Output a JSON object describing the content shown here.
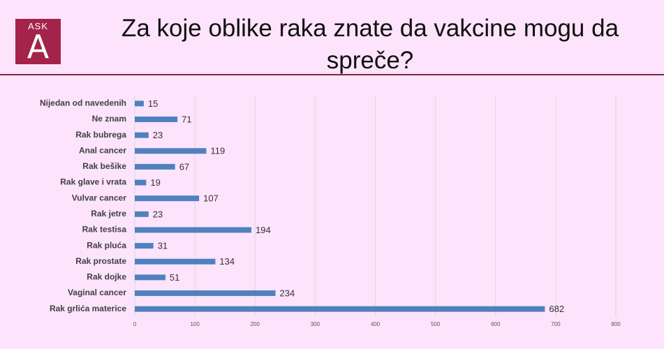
{
  "logo": {
    "top": "ASK",
    "letter": "A"
  },
  "chart_data": {
    "type": "bar",
    "orientation": "horizontal",
    "title": "Za koje oblike raka znate da vakcine mogu da spreče?",
    "categories": [
      "Nijedan od navedenih",
      "Ne znam",
      "Rak bubrega",
      "Anal cancer",
      "Rak bešike",
      "Rak glave i vrata",
      "Vulvar cancer",
      "Rak jetre",
      "Rak testisa",
      "Rak pluća",
      "Rak prostate",
      "Rak dojke",
      "Vaginal cancer",
      "Rak grlića materice"
    ],
    "values": [
      15,
      71,
      23,
      119,
      67,
      19,
      107,
      23,
      194,
      31,
      134,
      51,
      234,
      682
    ],
    "color": "#4f81bd",
    "xlim": [
      0,
      800
    ],
    "xticks": [
      0,
      100,
      200,
      300,
      400,
      500,
      600,
      700,
      800
    ],
    "grid": true
  }
}
